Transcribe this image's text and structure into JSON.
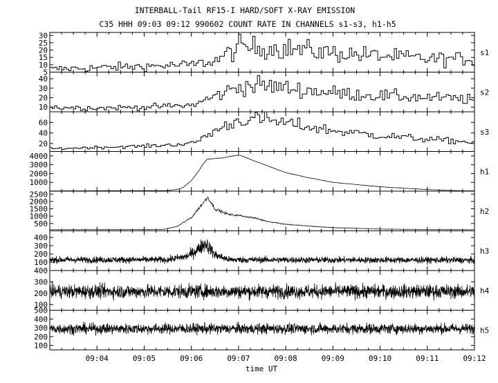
{
  "chart_data": {
    "type": "line",
    "title": "INTERBALL-Tail RF15-I HARD/SOFT X-RAY EMISSION",
    "subtitle": "C35 HHH 09:03 09:12 990602  COUNT RATE IN CHANNELS s1-s3, h1-h5",
    "xlabel": "time UT",
    "x_ticks": [
      "09:04",
      "09:05",
      "09:06",
      "09:07",
      "09:08",
      "09:09",
      "09:10",
      "09:11",
      "09:12"
    ],
    "xlim": [
      "09:03",
      "09:12"
    ],
    "panels": [
      {
        "name": "s1",
        "ylim": [
          5,
          32
        ],
        "yticks": [
          5,
          10,
          15,
          20,
          25,
          30
        ],
        "style": "step",
        "samples_per_min": 20,
        "noise": 0.35,
        "x": [
          "09:03",
          "09:04",
          "09:05",
          "09:06",
          "09:06.5",
          "09:07",
          "09:08",
          "09:09",
          "09:10",
          "09:11",
          "09:12"
        ],
        "y": [
          7,
          8,
          9,
          10,
          13,
          22,
          21,
          18,
          16,
          14,
          14
        ]
      },
      {
        "name": "s2",
        "ylim": [
          5,
          47
        ],
        "yticks": [
          10,
          20,
          30,
          40
        ],
        "style": "step",
        "samples_per_min": 20,
        "noise": 0.3,
        "x": [
          "09:03",
          "09:04",
          "09:05",
          "09:06",
          "09:06.5",
          "09:07",
          "09:07.5",
          "09:08",
          "09:09",
          "09:10",
          "09:11",
          "09:12"
        ],
        "y": [
          10,
          9,
          10,
          12,
          22,
          32,
          33,
          30,
          25,
          22,
          20,
          18
        ]
      },
      {
        "name": "s3",
        "ylim": [
          5,
          80
        ],
        "yticks": [
          20,
          40,
          60
        ],
        "style": "step",
        "samples_per_min": 20,
        "noise": 0.22,
        "x": [
          "09:03",
          "09:04",
          "09:05",
          "09:06",
          "09:06.5",
          "09:07",
          "09:07.5",
          "09:08",
          "09:09",
          "09:10",
          "09:11",
          "09:12"
        ],
        "y": [
          10,
          13,
          15,
          20,
          45,
          65,
          66,
          58,
          44,
          35,
          28,
          22
        ]
      },
      {
        "name": "h1",
        "ylim": [
          0,
          4500
        ],
        "yticks": [
          1000,
          2000,
          3000,
          4000
        ],
        "style": "line",
        "samples_per_min": 12,
        "noise": 0.01,
        "x": [
          "09:03",
          "09:05.5",
          "09:05.8",
          "09:06",
          "09:06.2",
          "09:06.3",
          "09:06.5",
          "09:06.7",
          "09:07",
          "09:07.3",
          "09:07.6",
          "09:08",
          "09:08.5",
          "09:09",
          "09:10",
          "09:11",
          "09:11.7",
          "09:12"
        ],
        "y": [
          30,
          60,
          300,
          1200,
          2600,
          3600,
          3700,
          3800,
          4100,
          3500,
          2900,
          2100,
          1500,
          1000,
          500,
          180,
          40,
          40
        ]
      },
      {
        "name": "h2",
        "ylim": [
          0,
          2700
        ],
        "yticks": [
          500,
          1000,
          1500,
          2000,
          2500
        ],
        "style": "line",
        "samples_per_min": 90,
        "noise": 0.07,
        "x": [
          "09:03",
          "09:05.4",
          "09:05.7",
          "09:06",
          "09:06.2",
          "09:06.35",
          "09:06.5",
          "09:06.8",
          "09:07",
          "09:07.3",
          "09:07.6",
          "09:08",
          "09:08.5",
          "09:09",
          "09:10",
          "09:11",
          "09:12"
        ],
        "y": [
          80,
          90,
          300,
          900,
          1700,
          2300,
          1500,
          1100,
          1050,
          900,
          650,
          450,
          320,
          220,
          120,
          90,
          80
        ]
      },
      {
        "name": "h3",
        "ylim": [
          0,
          480
        ],
        "yticks": [
          100,
          200,
          300,
          400
        ],
        "style": "line",
        "samples_per_min": 200,
        "noise": 0.3,
        "x": [
          "09:03",
          "09:05.5",
          "09:05.9",
          "09:06.1",
          "09:06.3",
          "09:06.5",
          "09:06.8",
          "09:12"
        ],
        "y": [
          130,
          130,
          170,
          240,
          330,
          190,
          130,
          125
        ]
      },
      {
        "name": "h4",
        "ylim": [
          50,
          400
        ],
        "yticks": [
          100,
          200,
          300,
          400
        ],
        "style": "line",
        "samples_per_min": 200,
        "noise": 0.28,
        "x": [
          "09:03",
          "09:12"
        ],
        "y": [
          215,
          215
        ]
      },
      {
        "name": "h5",
        "ylim": [
          50,
          500
        ],
        "yticks": [
          100,
          200,
          300,
          400,
          500
        ],
        "style": "line",
        "samples_per_min": 200,
        "noise": 0.2,
        "x": [
          "09:03",
          "09:12"
        ],
        "y": [
          290,
          290
        ]
      }
    ]
  }
}
